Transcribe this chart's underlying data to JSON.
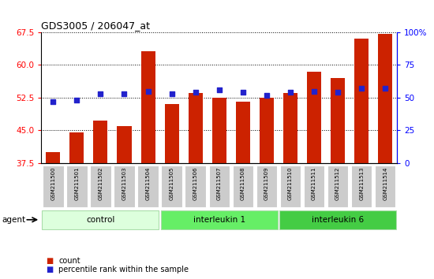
{
  "title": "GDS3005 / 206047_at",
  "samples": [
    "GSM211500",
    "GSM211501",
    "GSM211502",
    "GSM211503",
    "GSM211504",
    "GSM211505",
    "GSM211506",
    "GSM211507",
    "GSM211508",
    "GSM211509",
    "GSM211510",
    "GSM211511",
    "GSM211512",
    "GSM211513",
    "GSM211514"
  ],
  "count_values": [
    40.0,
    44.5,
    47.2,
    46.0,
    63.2,
    51.0,
    53.5,
    52.5,
    51.5,
    52.5,
    53.5,
    58.5,
    57.0,
    66.0,
    67.0
  ],
  "percentile_values": [
    47,
    48,
    53,
    53,
    55,
    53,
    54,
    56,
    54,
    52,
    54,
    55,
    54,
    57,
    57
  ],
  "groups": [
    {
      "label": "control",
      "start": 0,
      "end": 5,
      "color": "#ddffdd"
    },
    {
      "label": "interleukin 1",
      "start": 5,
      "end": 10,
      "color": "#66ee66"
    },
    {
      "label": "interleukin 6",
      "start": 10,
      "end": 15,
      "color": "#44cc44"
    }
  ],
  "bar_color": "#cc2200",
  "dot_color": "#2222cc",
  "ylim_left": [
    37.5,
    67.5
  ],
  "ylim_right": [
    0,
    100
  ],
  "yticks_left": [
    37.5,
    45.0,
    52.5,
    60.0,
    67.5
  ],
  "yticks_right": [
    0,
    25,
    50,
    75,
    100
  ],
  "agent_label": "agent",
  "legend_count": "count",
  "legend_percentile": "percentile rank within the sample"
}
